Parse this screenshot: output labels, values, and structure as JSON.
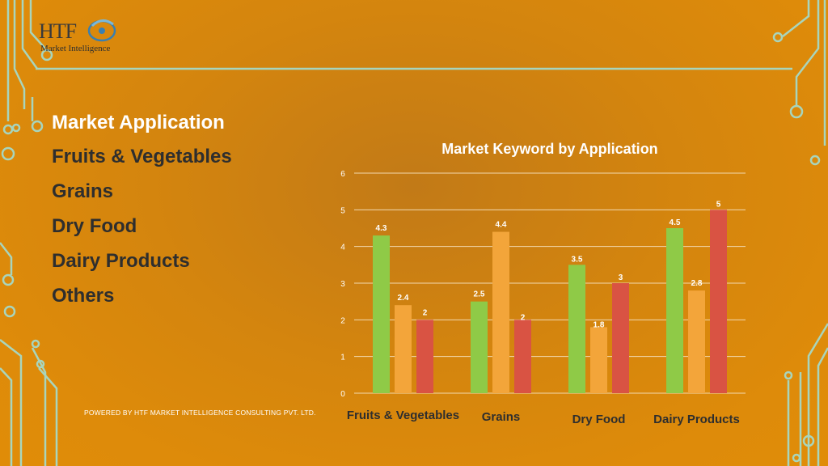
{
  "logo": {
    "name": "HTF",
    "tagline": "Market Intelligence"
  },
  "list": {
    "title": "Market Application",
    "items": [
      "Fruits & Vegetables",
      "Grains",
      "Dry Food",
      "Dairy Products",
      "Others"
    ]
  },
  "footer": {
    "text": "POWERED BY HTF MARKET INTELLIGENCE CONSULTING PVT. LTD."
  },
  "colors": {
    "series1": "#8fca47",
    "series2": "#f3a53a",
    "series3": "#d95343",
    "gridline": "#f2d9b0",
    "title": "#ffffff",
    "category_label": "#2e2e2e"
  },
  "chart_data": {
    "type": "bar",
    "title": "Market Keyword by Application",
    "categories": [
      "Fruits & Vegetables",
      "Grains",
      "Dry Food",
      "Dairy Products"
    ],
    "series": [
      {
        "values": [
          4.3,
          2.5,
          3.5,
          4.5
        ]
      },
      {
        "values": [
          2.4,
          4.4,
          1.8,
          2.8
        ]
      },
      {
        "values": [
          2,
          2,
          3,
          5
        ]
      }
    ],
    "ylim": [
      0,
      6
    ],
    "yticks": [
      "0",
      "1",
      "2",
      "3",
      "4",
      "5",
      "6"
    ],
    "grid": true,
    "xlabel": "",
    "ylabel": ""
  }
}
